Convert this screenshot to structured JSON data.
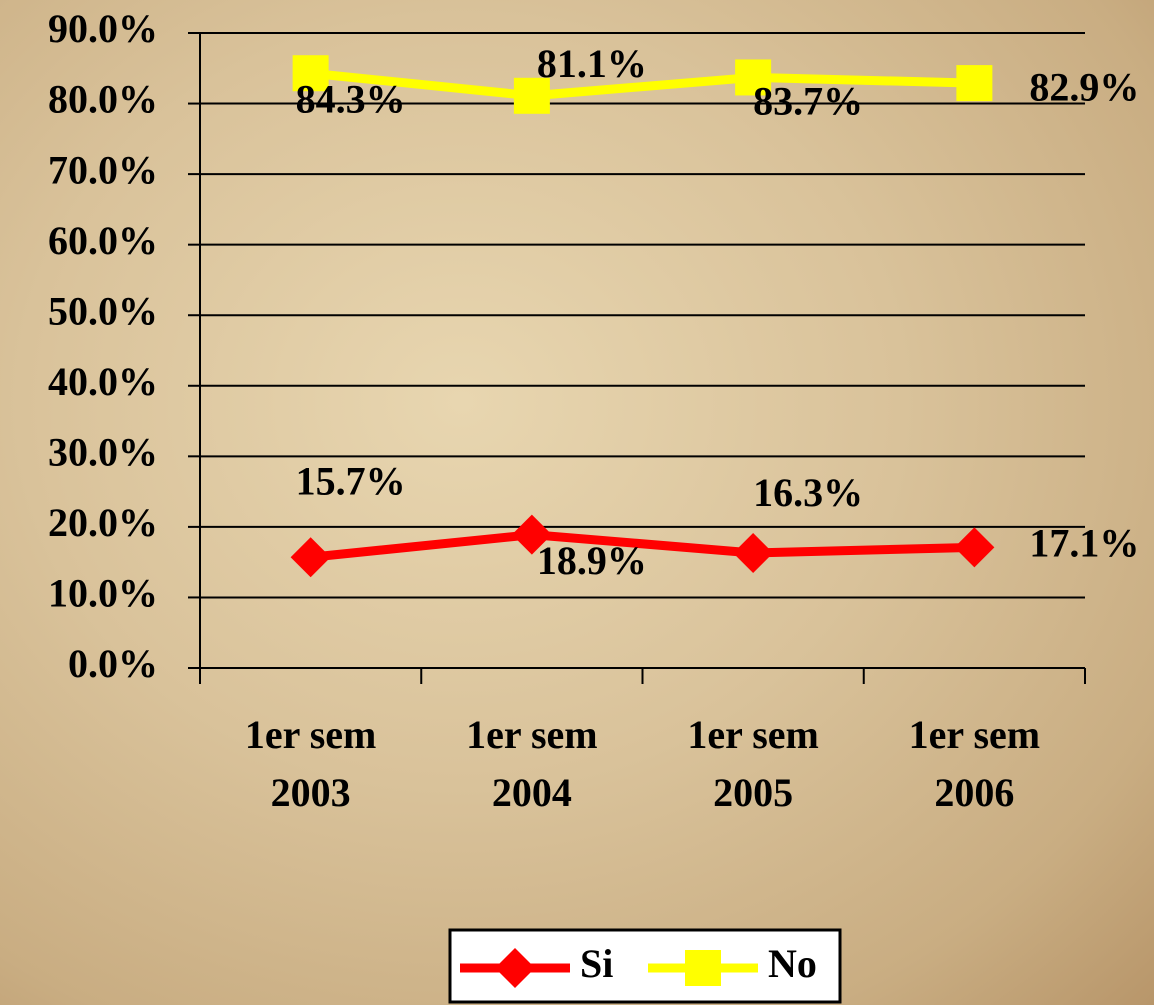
{
  "chart_data": {
    "type": "line",
    "categories": [
      "1er sem 2003",
      "1er sem 2004",
      "1er sem 2005",
      "1er sem 2006"
    ],
    "series": [
      {
        "name": "Si",
        "color": "#ff0000",
        "marker": "diamond",
        "values": [
          15.7,
          18.9,
          16.3,
          17.1
        ],
        "value_labels": [
          "15.7%",
          "18.9%",
          "16.3%",
          "17.1%"
        ]
      },
      {
        "name": "No",
        "color": "#ffff00",
        "marker": "square",
        "values": [
          84.3,
          81.1,
          83.7,
          82.9
        ],
        "value_labels": [
          "84.3%",
          "81.1%",
          "83.7%",
          "82.9%"
        ]
      }
    ],
    "ylim": [
      0,
      90
    ],
    "yticks": [
      {
        "value": 0,
        "label": "0.0%"
      },
      {
        "value": 10,
        "label": "10.0%"
      },
      {
        "value": 20,
        "label": "20.0%"
      },
      {
        "value": 30,
        "label": "30.0%"
      },
      {
        "value": 40,
        "label": "40.0%"
      },
      {
        "value": 50,
        "label": "50.0%"
      },
      {
        "value": 60,
        "label": "60.0%"
      },
      {
        "value": 70,
        "label": "70.0%"
      },
      {
        "value": 80,
        "label": "80.0%"
      },
      {
        "value": 90,
        "label": "90.0%"
      }
    ],
    "grid": true,
    "legend": "bottom"
  }
}
